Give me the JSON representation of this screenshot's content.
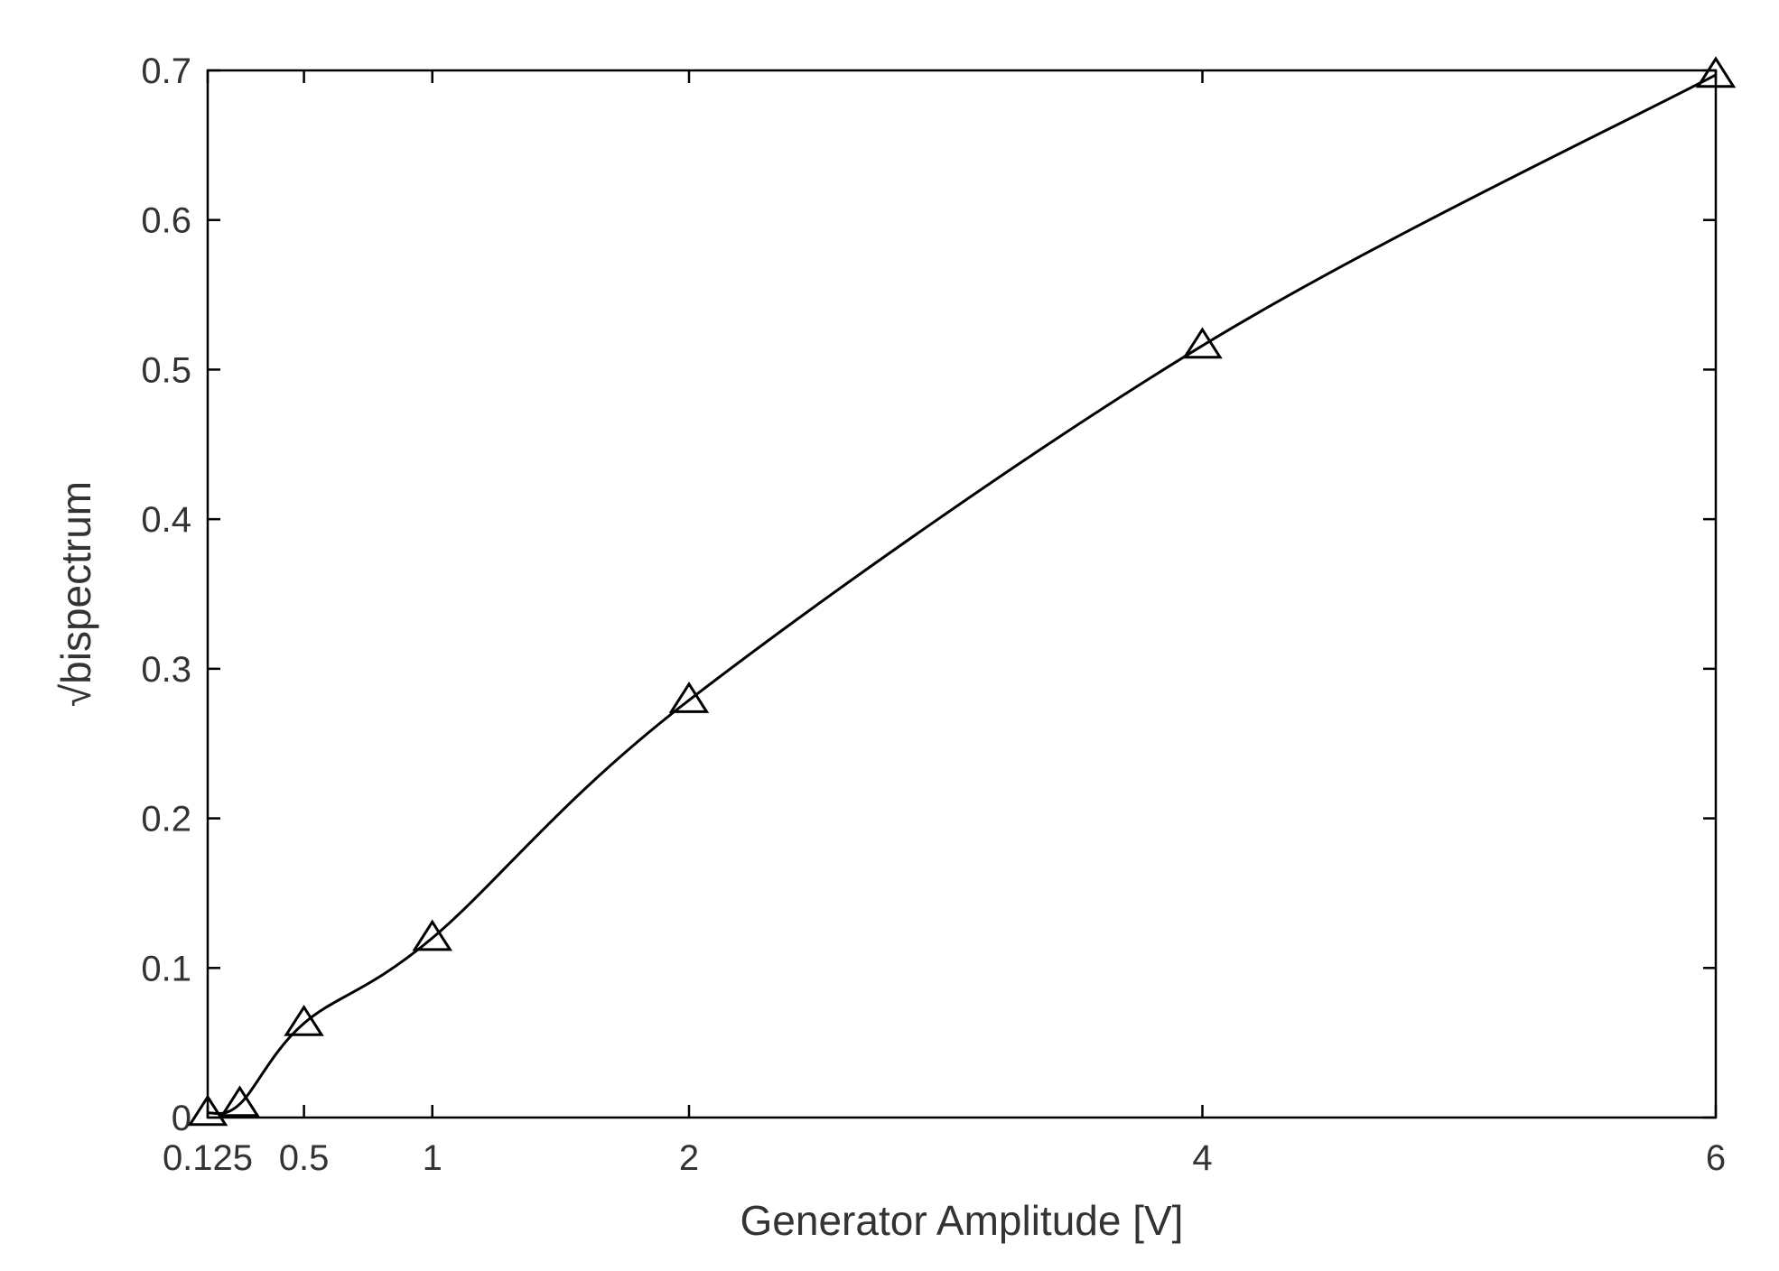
{
  "chart_data": {
    "type": "line",
    "xlabel": "Generator Amplitude [V]",
    "ylabel": "√bispectrum",
    "xlim": [
      0.125,
      6
    ],
    "ylim": [
      0,
      0.7
    ],
    "xticks": [
      {
        "value": 0.125,
        "label": "0.125"
      },
      {
        "value": 0.5,
        "label": "0.5"
      },
      {
        "value": 1,
        "label": "1"
      },
      {
        "value": 2,
        "label": "2"
      },
      {
        "value": 4,
        "label": "4"
      },
      {
        "value": 6,
        "label": "6"
      }
    ],
    "yticks": [
      {
        "value": 0,
        "label": "0"
      },
      {
        "value": 0.1,
        "label": "0.1"
      },
      {
        "value": 0.2,
        "label": "0.2"
      },
      {
        "value": 0.3,
        "label": "0.3"
      },
      {
        "value": 0.4,
        "label": "0.4"
      },
      {
        "value": 0.5,
        "label": "0.5"
      },
      {
        "value": 0.6,
        "label": "0.6"
      },
      {
        "value": 0.7,
        "label": "0.7"
      }
    ],
    "grid": false,
    "marker": "triangle",
    "colors": {
      "line": "#000000",
      "axes": "#000000",
      "text": "#333333"
    },
    "x": [
      0.125,
      0.25,
      0.5,
      1,
      2,
      4,
      6
    ],
    "y": [
      0.003,
      0.009,
      0.063,
      0.12,
      0.279,
      0.516,
      0.697
    ]
  }
}
